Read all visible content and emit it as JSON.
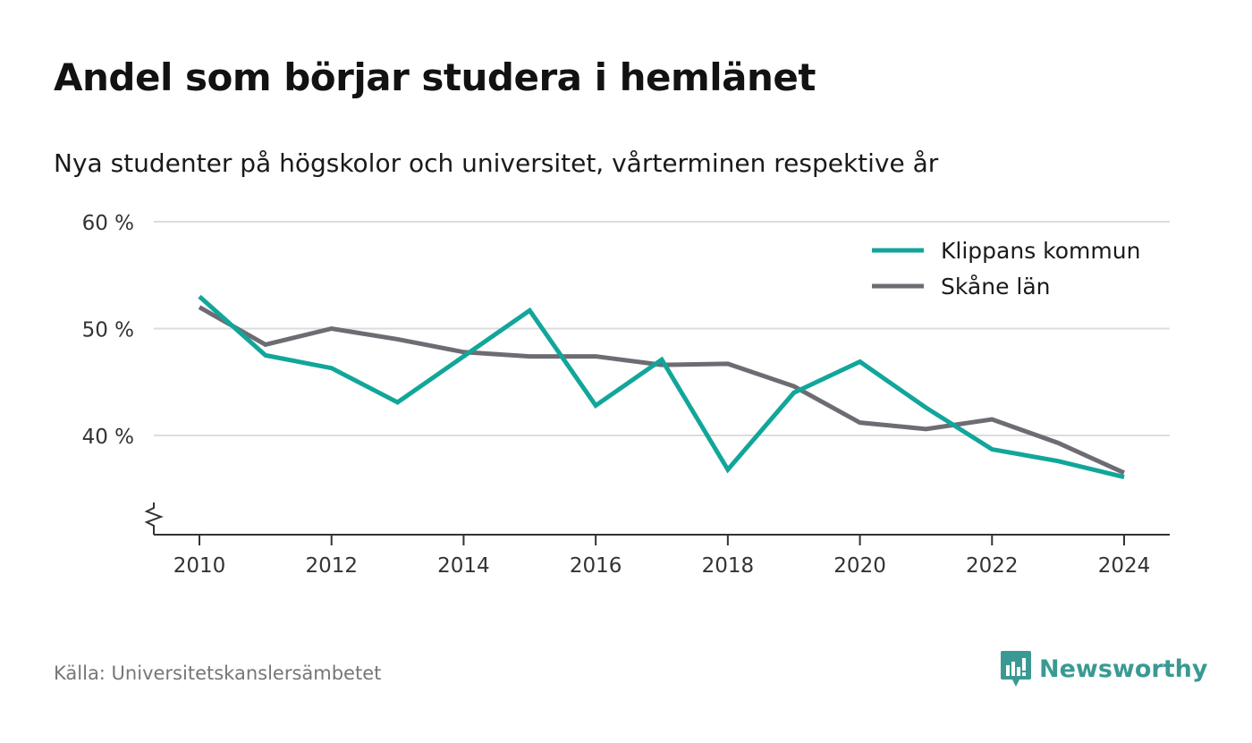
{
  "title": "Andel som börjar studera i hemlänet",
  "subtitle": "Nya studenter på högskolor och universitet, vårterminen respektive år",
  "source": "Källa: Universitetskanslersämbetet",
  "brand": "Newsworthy",
  "colors": {
    "klippan": "#12a69a",
    "skane": "#6e6c72",
    "grid": "#dcdcdc",
    "axis": "#333333",
    "brand": "#3a9a93"
  },
  "chart_data": {
    "type": "line",
    "x": [
      2010,
      2011,
      2012,
      2013,
      2014,
      2015,
      2016,
      2017,
      2018,
      2019,
      2020,
      2021,
      2022,
      2023,
      2024
    ],
    "series": [
      {
        "name": "Klippans kommun",
        "color": "#12a69a",
        "values": [
          53.0,
          47.5,
          46.3,
          43.1,
          47.4,
          51.7,
          42.8,
          47.1,
          36.8,
          44.0,
          46.9,
          42.6,
          38.7,
          37.6,
          36.1
        ]
      },
      {
        "name": "Skåne län",
        "color": "#6e6c72",
        "values": [
          52.0,
          48.5,
          50.0,
          49.0,
          47.8,
          47.4,
          47.4,
          46.6,
          46.7,
          44.6,
          41.2,
          40.6,
          41.5,
          39.3,
          36.5
        ]
      }
    ],
    "yticks": [
      40,
      50,
      60
    ],
    "ytick_labels": [
      "40 %",
      "50 %",
      "60 %"
    ],
    "xticks": [
      2010,
      2012,
      2014,
      2016,
      2018,
      2020,
      2022,
      2024
    ],
    "xtick_labels": [
      "2010",
      "2012",
      "2014",
      "2016",
      "2018",
      "2020",
      "2022",
      "2024"
    ],
    "ylim": [
      30.6,
      60
    ],
    "xlim": [
      2009.3,
      2024.7
    ],
    "y_axis_break": true,
    "grid": true,
    "legend_position": "top-right"
  }
}
